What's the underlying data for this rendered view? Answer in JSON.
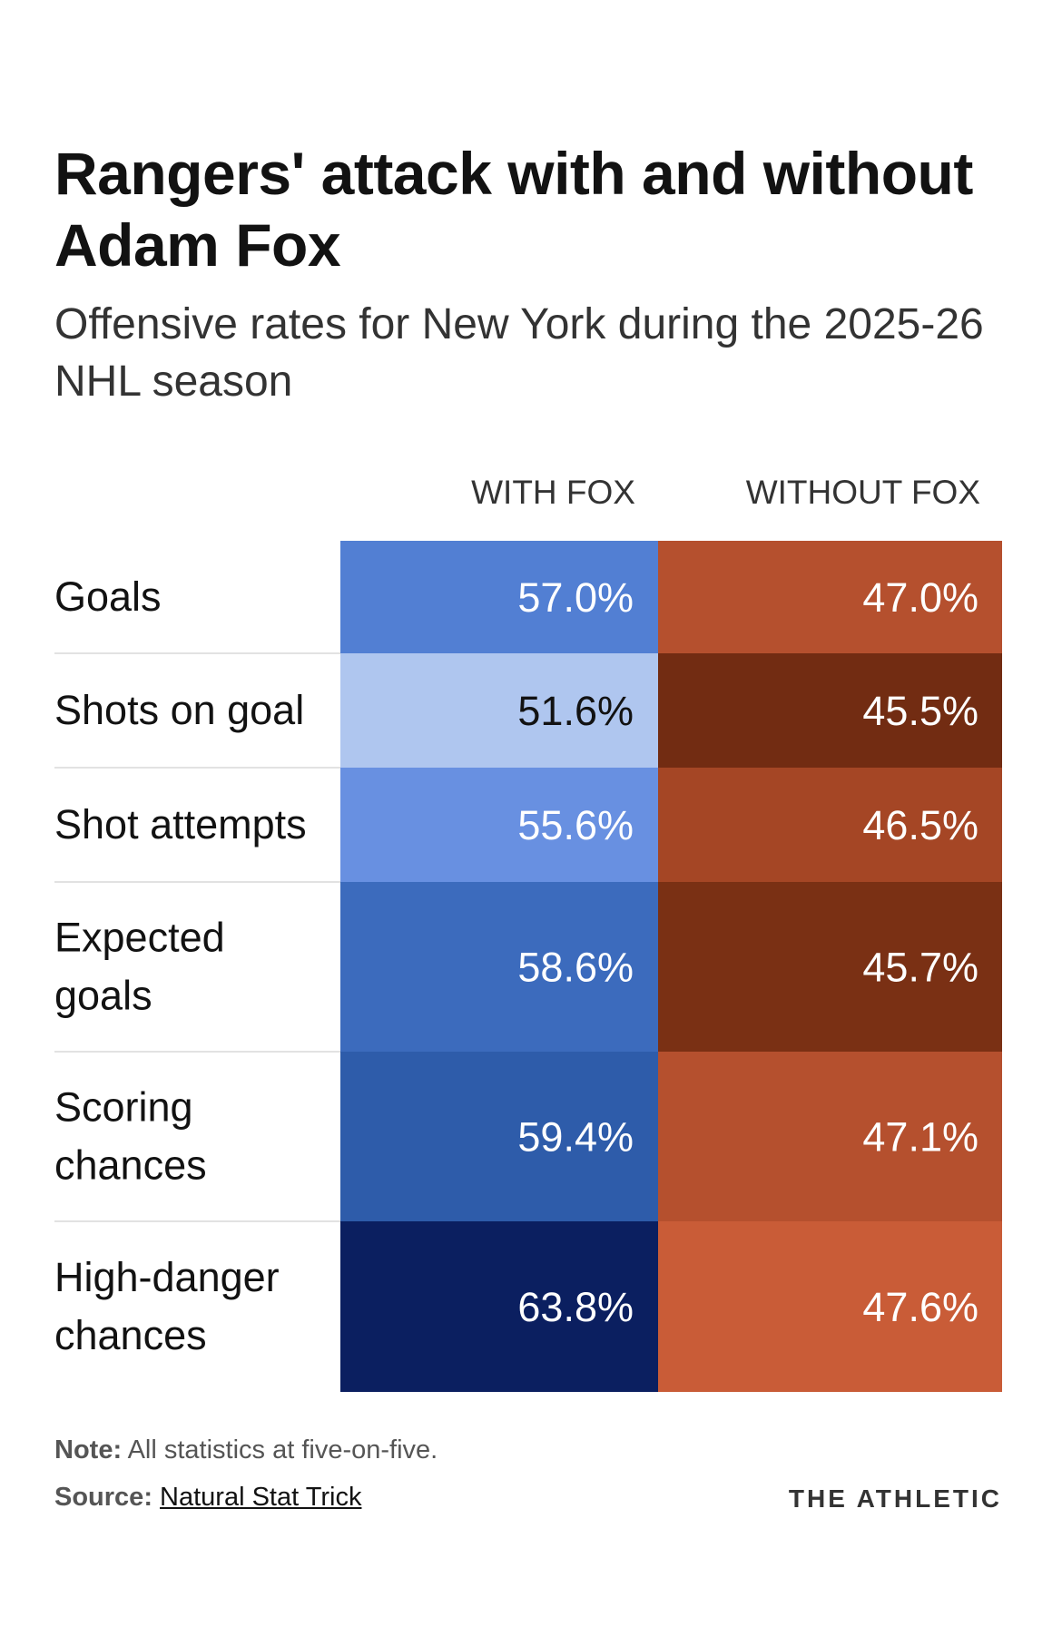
{
  "title": "Rangers' attack with and without Adam Fox",
  "subtitle": "Offensive rates for New York during the 2025-26 NHL season",
  "columns": {
    "with": "WITH FOX",
    "without": "WITHOUT FOX"
  },
  "chart_data": {
    "type": "table",
    "title": "Rangers' attack with and without Adam Fox",
    "subtitle": "Offensive rates for New York during the 2025-26 NHL season",
    "columns": [
      "WITH FOX",
      "WITHOUT FOX"
    ],
    "rows": [
      {
        "label": "Goals",
        "with": "57.0%",
        "without": "47.0%",
        "with_color": "#527fd3",
        "without_color": "#b5502e"
      },
      {
        "label": "Shots on goal",
        "with": "51.6%",
        "without": "45.5%",
        "with_color": "#afc6ef",
        "without_color": "#722c12"
      },
      {
        "label": "Shot attempts",
        "with": "55.6%",
        "without": "46.5%",
        "with_color": "#6890e1",
        "without_color": "#a54625"
      },
      {
        "label": "Expected goals",
        "with": "58.6%",
        "without": "45.7%",
        "with_color": "#3c6bbd",
        "without_color": "#7a3014"
      },
      {
        "label": "Scoring chances",
        "with": "59.4%",
        "without": "47.1%",
        "with_color": "#2e5caa",
        "without_color": "#b5502e"
      },
      {
        "label": "High-danger chances",
        "with": "63.8%",
        "without": "47.6%",
        "with_color": "#0b1f60",
        "without_color": "#c95c37"
      }
    ]
  },
  "footer": {
    "note_label": "Note:",
    "note_text": "All statistics at five-on-five.",
    "source_label": "Source:",
    "source_text": "Natural Stat Trick",
    "brand": "THE ATHLETIC"
  }
}
